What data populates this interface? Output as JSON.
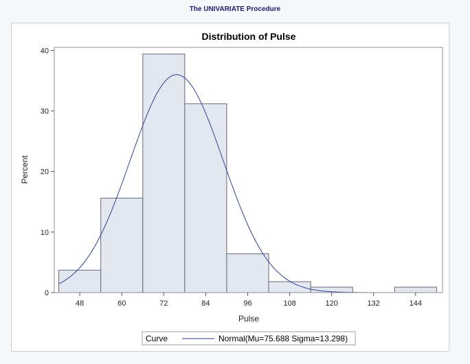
{
  "header": {
    "procedure_title": "The UNIVARIATE Procedure"
  },
  "colors": {
    "bar_fill": "#e3e7f0",
    "bar_stroke": "#636779",
    "curve": "#2e3f8f",
    "title_text": "#1a1f6b"
  },
  "chart_data": {
    "type": "bar",
    "title": "Distribution of Pulse",
    "xlabel": "Pulse",
    "ylabel": "Percent",
    "bins": [
      {
        "from": 42,
        "to": 54,
        "percent": 3.7
      },
      {
        "from": 54,
        "to": 66,
        "percent": 15.6
      },
      {
        "from": 66,
        "to": 78,
        "percent": 39.4
      },
      {
        "from": 78,
        "to": 90,
        "percent": 31.2
      },
      {
        "from": 90,
        "to": 102,
        "percent": 6.4
      },
      {
        "from": 102,
        "to": 114,
        "percent": 1.8
      },
      {
        "from": 114,
        "to": 126,
        "percent": 0.9
      },
      {
        "from": 126,
        "to": 138,
        "percent": 0
      },
      {
        "from": 138,
        "to": 150,
        "percent": 0.9
      }
    ],
    "xticks": [
      48,
      60,
      72,
      84,
      96,
      108,
      120,
      132,
      144
    ],
    "yticks": [
      0,
      10,
      20,
      30,
      40
    ],
    "xlim": [
      40.7,
      151.7
    ],
    "ylim": [
      0,
      40.5
    ],
    "curve": {
      "distribution": "Normal",
      "mu": 75.688,
      "sigma": 13.298,
      "bin_width": 12
    },
    "legend": {
      "heading": "Curve",
      "label": "Normal(Mu=75.688 Sigma=13.298)",
      "position": "bottom"
    }
  }
}
